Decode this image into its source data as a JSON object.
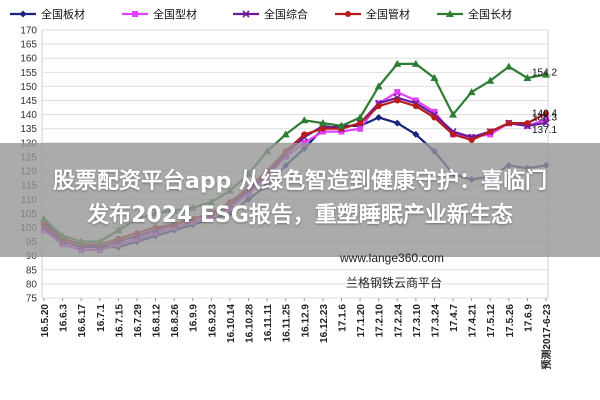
{
  "overlay": {
    "line1": "股票配资平台app 从绿色智造到健康守护：喜临门",
    "line2": "发布2024 ESG报告，重塑睡眠产业新生态"
  },
  "watermark": {
    "url": "www.lange360.com",
    "name": "兰格钢铁云商平台"
  },
  "chart_data": {
    "type": "line",
    "ylim": [
      75,
      170
    ],
    "yticks": [
      75,
      80,
      85,
      90,
      95,
      100,
      105,
      110,
      115,
      120,
      125,
      130,
      135,
      140,
      145,
      150,
      155,
      160,
      165,
      170
    ],
    "categories": [
      "16.5.20",
      "16.6.3",
      "16.6.17",
      "16.7.1",
      "16.7.15",
      "16.7.29",
      "16.8.12",
      "16.8.26",
      "16.9.9",
      "16.9.23",
      "16.10.14",
      "16.10.28",
      "16.11.11",
      "16.11.25",
      "16.12.9",
      "16.12.23",
      "17.1.6",
      "17.1.20",
      "17.2.10",
      "17.2.24",
      "17.3.10",
      "17.3.24",
      "17.4.7",
      "17.4.21",
      "17.5.12",
      "17.5.26",
      "17.6.9",
      "预测2017-6-23"
    ],
    "series": [
      {
        "name": "全国板材",
        "color": "#1a237e",
        "marker": "diamond",
        "values": [
          102,
          96,
          94,
          93,
          93,
          95,
          97,
          99,
          101,
          103,
          105,
          110,
          115,
          122,
          128,
          135,
          136,
          136,
          139,
          137,
          133,
          127,
          119,
          117,
          118,
          122,
          121,
          122
        ]
      },
      {
        "name": "全国型材",
        "color": "#e040fb",
        "marker": "square",
        "values": [
          99,
          94,
          92,
          92,
          94,
          96,
          98,
          100,
          102,
          104,
          107,
          112,
          118,
          125,
          130,
          134,
          134,
          135,
          144,
          148,
          145,
          141,
          133,
          132,
          133,
          137,
          136,
          138.3
        ]
      },
      {
        "name": "全国综合",
        "color": "#6a1b9a",
        "marker": "x",
        "values": [
          100,
          95,
          93,
          93,
          95,
          97,
          99,
          101,
          103,
          105,
          108,
          113,
          119,
          126,
          132,
          136,
          135,
          137,
          144,
          146,
          144,
          140,
          134,
          132,
          134,
          137,
          136,
          137.1
        ]
      },
      {
        "name": "全国管材",
        "color": "#b71c1c",
        "marker": "circle",
        "values": [
          101,
          96,
          94,
          94,
          96,
          98,
          100,
          101,
          103,
          105,
          109,
          114,
          120,
          127,
          133,
          135,
          135,
          137,
          143,
          145,
          143,
          139,
          133,
          131,
          134,
          137,
          137,
          140.4
        ]
      },
      {
        "name": "全国长材",
        "color": "#2e7d32",
        "marker": "triangle",
        "values": [
          103,
          97,
          95,
          95,
          99,
          103,
          105,
          106,
          107,
          109,
          113,
          119,
          127,
          133,
          138,
          137,
          136,
          139,
          150,
          158,
          158,
          153,
          140,
          148,
          152,
          157,
          153,
          154.2
        ]
      }
    ],
    "end_labels": [
      "154.2",
      "140.4",
      "138.3",
      "137.1"
    ],
    "grid": true,
    "legend": "top"
  }
}
